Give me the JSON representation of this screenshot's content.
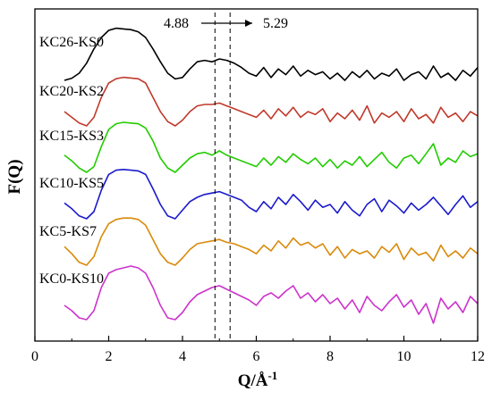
{
  "chart_data": {
    "type": "line",
    "xlabel_prefix": "Q/Å",
    "xlabel_sup": "-1",
    "ylabel": "F(Q)",
    "xlim": [
      0,
      12
    ],
    "xticks": [
      0,
      2,
      4,
      6,
      8,
      10,
      12
    ],
    "grid": false,
    "legend": "none",
    "annotations": {
      "arrow_from_label": "4.88",
      "arrow_to_label": "5.29",
      "vlines_x": [
        4.88,
        5.29
      ]
    },
    "series": [
      {
        "name": "KC26-KS0",
        "color": "#000000",
        "x": [
          0.8,
          1.0,
          1.2,
          1.4,
          1.6,
          1.8,
          2.0,
          2.2,
          2.4,
          2.6,
          2.8,
          3.0,
          3.2,
          3.4,
          3.6,
          3.8,
          4.0,
          4.2,
          4.4,
          4.6,
          4.8,
          5.0,
          5.2,
          5.4,
          5.6,
          5.8,
          6.0,
          6.2,
          6.4,
          6.6,
          6.8,
          7.0,
          7.2,
          7.4,
          7.6,
          7.8,
          8.0,
          8.2,
          8.4,
          8.6,
          8.8,
          9.0,
          9.2,
          9.4,
          9.6,
          9.8,
          10.0,
          10.2,
          10.4,
          10.6,
          10.8,
          11.0,
          11.2,
          11.4,
          11.6,
          11.8,
          12.0
        ],
        "y": [
          0.0,
          0.15,
          0.5,
          1.2,
          2.2,
          3.0,
          3.5,
          3.65,
          3.6,
          3.55,
          3.4,
          3.0,
          2.2,
          1.3,
          0.5,
          0.1,
          0.2,
          0.8,
          1.3,
          1.4,
          1.3,
          1.5,
          1.4,
          1.2,
          0.9,
          0.5,
          0.3,
          0.9,
          0.2,
          0.8,
          0.4,
          1.0,
          0.3,
          0.7,
          0.4,
          0.6,
          0.1,
          0.5,
          0.0,
          0.6,
          0.2,
          0.7,
          0.1,
          0.5,
          0.3,
          0.8,
          0.0,
          0.4,
          0.6,
          0.1,
          1.0,
          0.2,
          0.5,
          0.0,
          0.7,
          0.3,
          0.9
        ]
      },
      {
        "name": "KC20-KS2",
        "color": "#c0392b",
        "x": [
          0.8,
          1.0,
          1.2,
          1.4,
          1.6,
          1.8,
          2.0,
          2.2,
          2.4,
          2.6,
          2.8,
          3.0,
          3.2,
          3.4,
          3.6,
          3.8,
          4.0,
          4.2,
          4.4,
          4.6,
          4.8,
          5.0,
          5.2,
          5.4,
          5.6,
          5.8,
          6.0,
          6.2,
          6.4,
          6.6,
          6.8,
          7.0,
          7.2,
          7.4,
          7.6,
          7.8,
          8.0,
          8.2,
          8.4,
          8.6,
          8.8,
          9.0,
          9.2,
          9.4,
          9.6,
          9.8,
          10.0,
          10.2,
          10.4,
          10.6,
          10.8,
          11.0,
          11.2,
          11.4,
          11.6,
          11.8,
          12.0
        ],
        "y": [
          1.0,
          0.6,
          0.2,
          0.0,
          0.6,
          2.0,
          3.0,
          3.3,
          3.4,
          3.35,
          3.3,
          3.0,
          2.0,
          1.0,
          0.3,
          0.0,
          0.4,
          1.0,
          1.4,
          1.5,
          1.5,
          1.6,
          1.4,
          1.2,
          1.0,
          0.8,
          0.6,
          1.1,
          0.5,
          1.2,
          0.7,
          1.3,
          0.6,
          1.0,
          0.8,
          1.2,
          0.3,
          0.9,
          0.5,
          1.1,
          0.4,
          1.4,
          0.2,
          0.9,
          0.6,
          1.0,
          0.3,
          1.2,
          0.5,
          0.8,
          0.2,
          1.3,
          0.6,
          0.9,
          0.3,
          1.0,
          0.7
        ]
      },
      {
        "name": "KC15-KS3",
        "color": "#22cc00",
        "x": [
          0.8,
          1.0,
          1.2,
          1.4,
          1.6,
          1.8,
          2.0,
          2.2,
          2.4,
          2.6,
          2.8,
          3.0,
          3.2,
          3.4,
          3.6,
          3.8,
          4.0,
          4.2,
          4.4,
          4.6,
          4.8,
          5.0,
          5.2,
          5.4,
          5.6,
          5.8,
          6.0,
          6.2,
          6.4,
          6.6,
          6.8,
          7.0,
          7.2,
          7.4,
          7.6,
          7.8,
          8.0,
          8.2,
          8.4,
          8.6,
          8.8,
          9.0,
          9.2,
          9.4,
          9.6,
          9.8,
          10.0,
          10.2,
          10.4,
          10.6,
          10.8,
          11.0,
          11.2,
          11.4,
          11.6,
          11.8,
          12.0
        ],
        "y": [
          1.2,
          0.8,
          0.3,
          0.0,
          0.4,
          1.8,
          3.0,
          3.4,
          3.5,
          3.45,
          3.4,
          3.1,
          2.2,
          1.0,
          0.3,
          0.0,
          0.5,
          1.0,
          1.3,
          1.4,
          1.2,
          1.5,
          1.2,
          1.0,
          0.8,
          0.6,
          0.4,
          1.0,
          0.5,
          1.1,
          0.7,
          1.3,
          0.9,
          0.6,
          1.0,
          0.4,
          0.9,
          0.3,
          0.8,
          0.5,
          1.1,
          0.4,
          0.9,
          1.4,
          0.7,
          0.3,
          1.0,
          1.2,
          0.6,
          1.3,
          2.0,
          0.5,
          1.0,
          0.7,
          1.5,
          1.1,
          1.3
        ]
      },
      {
        "name": "KC10-KS5",
        "color": "#1a1acc",
        "x": [
          0.8,
          1.0,
          1.2,
          1.4,
          1.6,
          1.8,
          2.0,
          2.2,
          2.4,
          2.6,
          2.8,
          3.0,
          3.2,
          3.4,
          3.6,
          3.8,
          4.0,
          4.2,
          4.4,
          4.6,
          4.8,
          5.0,
          5.2,
          5.4,
          5.6,
          5.8,
          6.0,
          6.2,
          6.4,
          6.6,
          6.8,
          7.0,
          7.2,
          7.4,
          7.6,
          7.8,
          8.0,
          8.2,
          8.4,
          8.6,
          8.8,
          9.0,
          9.2,
          9.4,
          9.6,
          9.8,
          10.0,
          10.2,
          10.4,
          10.6,
          10.8,
          11.0,
          11.2,
          11.4,
          11.6,
          11.8,
          12.0
        ],
        "y": [
          1.1,
          0.7,
          0.2,
          0.0,
          0.5,
          2.0,
          3.1,
          3.4,
          3.45,
          3.4,
          3.35,
          3.1,
          2.1,
          1.0,
          0.2,
          0.0,
          0.6,
          1.2,
          1.5,
          1.7,
          1.8,
          1.9,
          1.7,
          1.5,
          1.3,
          0.8,
          0.5,
          1.2,
          0.7,
          1.5,
          1.0,
          1.7,
          1.2,
          0.6,
          1.3,
          0.8,
          1.0,
          0.4,
          1.2,
          0.6,
          0.2,
          1.0,
          1.4,
          0.5,
          1.3,
          0.9,
          0.4,
          1.1,
          0.6,
          1.0,
          1.5,
          0.9,
          0.3,
          1.0,
          1.6,
          0.8,
          1.2
        ]
      },
      {
        "name": "KC5-KS7",
        "color": "#d98a0b",
        "x": [
          0.8,
          1.0,
          1.2,
          1.4,
          1.6,
          1.8,
          2.0,
          2.2,
          2.4,
          2.6,
          2.8,
          3.0,
          3.2,
          3.4,
          3.6,
          3.8,
          4.0,
          4.2,
          4.4,
          4.6,
          4.8,
          5.0,
          5.2,
          5.4,
          5.6,
          5.8,
          6.0,
          6.2,
          6.4,
          6.6,
          6.8,
          7.0,
          7.2,
          7.4,
          7.6,
          7.8,
          8.0,
          8.2,
          8.4,
          8.6,
          8.8,
          9.0,
          9.2,
          9.4,
          9.6,
          9.8,
          10.0,
          10.2,
          10.4,
          10.6,
          10.8,
          11.0,
          11.2,
          11.4,
          11.6,
          11.8,
          12.0
        ],
        "y": [
          1.3,
          0.8,
          0.2,
          0.0,
          0.6,
          2.0,
          2.9,
          3.2,
          3.3,
          3.3,
          3.2,
          2.8,
          1.8,
          0.8,
          0.2,
          0.0,
          0.5,
          1.1,
          1.5,
          1.6,
          1.7,
          1.8,
          1.6,
          1.5,
          1.3,
          1.1,
          0.8,
          1.4,
          1.0,
          1.7,
          1.2,
          1.9,
          1.4,
          1.6,
          1.2,
          1.5,
          0.7,
          1.3,
          0.5,
          1.1,
          0.8,
          1.0,
          0.5,
          1.3,
          0.9,
          1.5,
          0.4,
          1.2,
          0.7,
          0.9,
          0.3,
          1.4,
          0.6,
          1.0,
          0.5,
          1.2,
          0.8
        ]
      },
      {
        "name": "KC0-KS10",
        "color": "#cc33cc",
        "x": [
          0.8,
          1.0,
          1.2,
          1.4,
          1.6,
          1.8,
          2.0,
          2.2,
          2.4,
          2.6,
          2.8,
          3.0,
          3.2,
          3.4,
          3.6,
          3.8,
          4.0,
          4.2,
          4.4,
          4.6,
          4.8,
          5.0,
          5.2,
          5.4,
          5.6,
          5.8,
          6.0,
          6.2,
          6.4,
          6.6,
          6.8,
          7.0,
          7.2,
          7.4,
          7.6,
          7.8,
          8.0,
          8.2,
          8.4,
          8.6,
          8.8,
          9.0,
          9.2,
          9.4,
          9.6,
          9.8,
          10.0,
          10.2,
          10.4,
          10.6,
          10.8,
          11.0,
          11.2,
          11.4,
          11.6,
          11.8,
          12.0
        ],
        "y": [
          0.8,
          0.5,
          0.1,
          0.0,
          0.5,
          1.8,
          2.6,
          2.8,
          2.9,
          3.0,
          2.9,
          2.6,
          1.8,
          0.8,
          0.1,
          0.0,
          0.4,
          1.0,
          1.4,
          1.6,
          1.8,
          1.9,
          1.7,
          1.5,
          1.3,
          1.1,
          0.8,
          1.3,
          1.5,
          1.2,
          1.6,
          1.9,
          1.2,
          1.5,
          1.0,
          1.4,
          0.9,
          1.2,
          0.6,
          1.1,
          0.4,
          1.3,
          0.8,
          0.5,
          1.0,
          1.4,
          0.7,
          1.1,
          0.3,
          0.9,
          -0.2,
          1.2,
          0.6,
          1.0,
          0.4,
          1.3,
          0.9
        ]
      }
    ]
  }
}
